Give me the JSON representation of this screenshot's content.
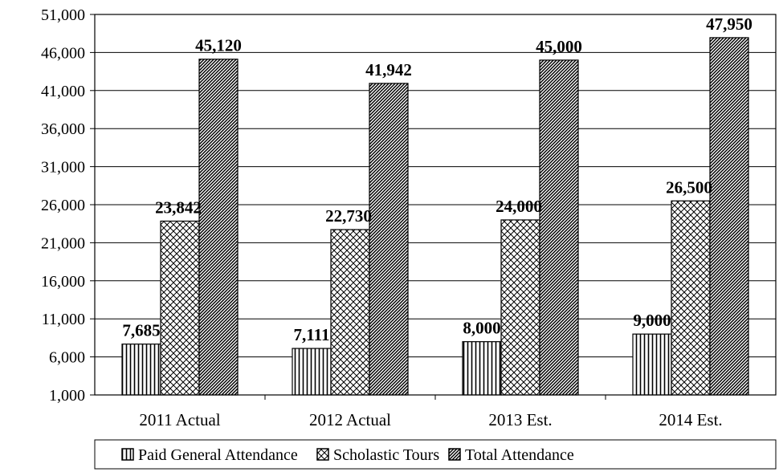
{
  "chart_data": {
    "type": "bar",
    "categories": [
      "2011 Actual",
      "2012 Actual",
      "2013 Est.",
      "2014 Est."
    ],
    "series": [
      {
        "name": "Paid General Attendance",
        "values": [
          7685,
          7111,
          8000,
          9000
        ],
        "labels": [
          "7,685",
          "7,111",
          "8,000",
          "9,000"
        ],
        "pattern": "vertical-lines"
      },
      {
        "name": "Scholastic Tours",
        "values": [
          23842,
          22730,
          24000,
          26500
        ],
        "labels": [
          "23,842",
          "22,730",
          "24,000",
          "26,500"
        ],
        "pattern": "crosshatch"
      },
      {
        "name": "Total Attendance",
        "values": [
          45120,
          41942,
          45000,
          47950
        ],
        "labels": [
          "45,120",
          "41,942",
          "45,000",
          "47,950"
        ],
        "pattern": "diagonal-lines"
      }
    ],
    "yticks": [
      1000,
      6000,
      11000,
      16000,
      21000,
      26000,
      31000,
      36000,
      41000,
      46000,
      51000
    ],
    "ytick_labels": [
      "1,000",
      "6,000",
      "11,000",
      "16,000",
      "21,000",
      "26,000",
      "31,000",
      "36,000",
      "41,000",
      "46,000",
      "51,000"
    ],
    "ylim": [
      1000,
      51000
    ],
    "grid": true,
    "legend_position": "bottom"
  }
}
